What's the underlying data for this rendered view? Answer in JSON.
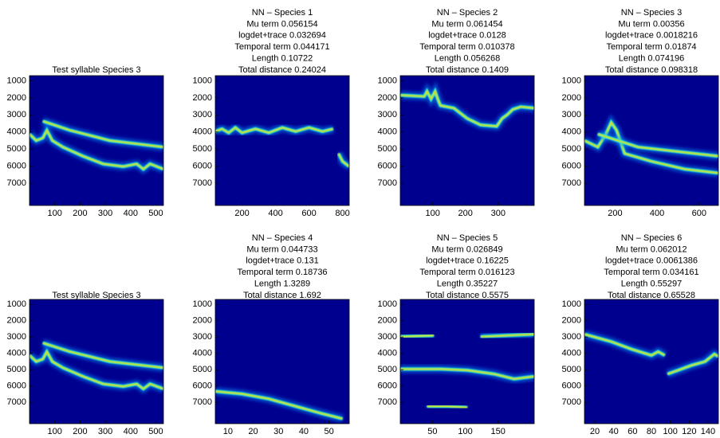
{
  "chart_data": [
    {
      "type": "spectrogram",
      "title": "Test syllable Species 3",
      "xlim": [
        0,
        530
      ],
      "xticks": [
        100,
        200,
        300,
        400,
        500
      ],
      "ylim": [
        700,
        8300
      ],
      "yticks": [
        1000,
        2000,
        3000,
        4000,
        5000,
        6000,
        7000
      ],
      "y_inverted": true
    },
    {
      "type": "spectrogram",
      "title": "NN – Species 1",
      "annotations": [
        "Mu term 0.056154",
        "logdet+trace 0.032694",
        "Temporal term 0.044171",
        "Length 0.10722",
        "Total distance 0.24024"
      ],
      "xlim": [
        40,
        840
      ],
      "xticks": [
        200,
        400,
        600,
        800
      ],
      "ylim": [
        700,
        8300
      ],
      "yticks": [
        1000,
        2000,
        3000,
        4000,
        5000,
        6000,
        7000
      ],
      "y_inverted": true
    },
    {
      "type": "spectrogram",
      "title": "NN – Species 2",
      "annotations": [
        "Mu term 0.061454",
        "logdet+trace 0.0128",
        "Temporal term 0.010378",
        "Length 0.056268",
        "Total distance 0.1409"
      ],
      "xlim": [
        1,
        410
      ],
      "xticks": [
        100,
        200,
        300
      ],
      "ylim": [
        700,
        8300
      ],
      "yticks": [
        1000,
        2000,
        3000,
        4000,
        5000,
        6000,
        7000
      ],
      "y_inverted": true
    },
    {
      "type": "spectrogram",
      "title": "NN – Species 3",
      "annotations": [
        "Mu term 0.00356",
        "logdet+trace 0.0018216",
        "Temporal term 0.01874",
        "Length 0.074196",
        "Total distance 0.098318"
      ],
      "xlim": [
        54,
        692
      ],
      "xticks": [
        200,
        400,
        600
      ],
      "ylim": [
        700,
        8300
      ],
      "yticks": [
        1000,
        2000,
        3000,
        4000,
        5000,
        6000,
        7000
      ],
      "y_inverted": true
    },
    {
      "type": "spectrogram",
      "title": "Test syllable Species 3",
      "xlim": [
        0,
        530
      ],
      "xticks": [
        100,
        200,
        300,
        400,
        500
      ],
      "ylim": [
        700,
        8300
      ],
      "yticks": [
        1000,
        2000,
        3000,
        4000,
        5000,
        6000,
        7000
      ],
      "y_inverted": true
    },
    {
      "type": "spectrogram",
      "title": "NN – Species 4",
      "annotations": [
        "Mu term 0.044733",
        "logdet+trace 0.131",
        "Temporal term 0.18736",
        "Length 1.3289",
        "Total distance 1.692"
      ],
      "xlim": [
        5,
        58
      ],
      "xticks": [
        10,
        20,
        30,
        40,
        50
      ],
      "ylim": [
        700,
        8300
      ],
      "yticks": [
        1000,
        2000,
        3000,
        4000,
        5000,
        6000,
        7000
      ],
      "y_inverted": true
    },
    {
      "type": "spectrogram",
      "title": "NN – Species 5",
      "annotations": [
        "Mu term 0.026849",
        "logdet+trace 0.16225",
        "Temporal term 0.016123",
        "Length 0.35227",
        "Total distance 0.5575"
      ],
      "xlim": [
        1,
        205
      ],
      "xticks": [
        50,
        100,
        150
      ],
      "ylim": [
        700,
        8300
      ],
      "yticks": [
        1000,
        2000,
        3000,
        4000,
        5000,
        6000,
        7000
      ],
      "y_inverted": true
    },
    {
      "type": "spectrogram",
      "title": "NN – Species 6",
      "annotations": [
        "Mu term 0.062012",
        "logdet+trace 0.0061386",
        "Temporal term 0.034161",
        "Length 0.55297",
        "Total distance 0.65528"
      ],
      "xlim": [
        9,
        151
      ],
      "xticks": [
        20,
        40,
        60,
        80,
        100,
        120,
        140
      ],
      "ylim": [
        700,
        8300
      ],
      "yticks": [
        1000,
        2000,
        3000,
        4000,
        5000,
        6000,
        7000
      ],
      "y_inverted": true
    }
  ]
}
